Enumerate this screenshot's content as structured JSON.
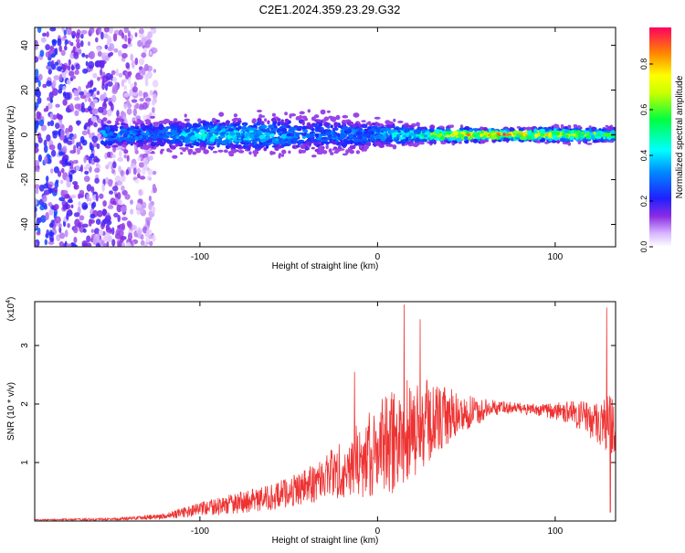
{
  "title": "C2E1.2024.359.23.29.G32",
  "chart_data": [
    {
      "type": "heatmap",
      "title": "C2E1.2024.359.23.29.G32",
      "xlabel": "Height of straight line (km)",
      "ylabel": "Frequency (Hz)",
      "xlim": [
        -193,
        134
      ],
      "ylim": [
        -50,
        48
      ],
      "x_ticks": [
        "-100",
        "0",
        "100"
      ],
      "x_tick_values": [
        -100,
        0,
        100
      ],
      "y_ticks": [
        "-40",
        "-20",
        "0",
        "20",
        "40"
      ],
      "y_tick_values": [
        -40,
        -20,
        0,
        20,
        40
      ],
      "colorbar": {
        "label": "Normalized spectral amplitude",
        "ticks": [
          "0.0",
          "0.2",
          "0.4",
          "0.6",
          "0.8"
        ],
        "tick_values": [
          0.0,
          0.2,
          0.4,
          0.6,
          0.8
        ],
        "range": [
          0,
          0.96
        ],
        "colormap": "rainbow"
      },
      "band": {
        "center_frequency": 0,
        "x_start": -155,
        "profile": [
          {
            "x": -155,
            "halfwidth": 8,
            "amplitude": 0.4
          },
          {
            "x": -120,
            "halfwidth": 9,
            "amplitude": 0.35
          },
          {
            "x": -100,
            "halfwidth": 9,
            "amplitude": 0.5
          },
          {
            "x": -60,
            "halfwidth": 10,
            "amplitude": 0.45
          },
          {
            "x": -40,
            "halfwidth": 11,
            "amplitude": 0.35
          },
          {
            "x": 0,
            "halfwidth": 8,
            "amplitude": 0.4
          },
          {
            "x": 20,
            "halfwidth": 5,
            "amplitude": 0.55
          },
          {
            "x": 40,
            "halfwidth": 4,
            "amplitude": 0.8
          },
          {
            "x": 70,
            "halfwidth": 3,
            "amplitude": 0.96
          },
          {
            "x": 100,
            "halfwidth": 4,
            "amplitude": 0.8
          },
          {
            "x": 134,
            "halfwidth": 4,
            "amplitude": 0.6
          }
        ]
      },
      "scatter_region": {
        "x_range": [
          -193,
          -125
        ],
        "y_range": [
          -50,
          48
        ],
        "amplitude": 0.3
      }
    },
    {
      "type": "line",
      "xlabel": "Height of straight line (km)",
      "ylabel": "SNR (10 * v/v)",
      "y_multiplier": "(x10",
      "y_multiplier_exp": "4",
      "xlim": [
        -193,
        134
      ],
      "ylim": [
        0,
        3.75
      ],
      "x_ticks": [
        "-100",
        "0",
        "100"
      ],
      "x_tick_values": [
        -100,
        0,
        100
      ],
      "y_ticks": [
        "1",
        "2",
        "3"
      ],
      "y_tick_values": [
        1,
        2,
        3
      ],
      "color": "#ee3333",
      "envelope": [
        {
          "x": -193,
          "mean": 0.02,
          "spread": 0.01
        },
        {
          "x": -150,
          "mean": 0.03,
          "spread": 0.02
        },
        {
          "x": -120,
          "mean": 0.08,
          "spread": 0.05
        },
        {
          "x": -100,
          "mean": 0.2,
          "spread": 0.12
        },
        {
          "x": -80,
          "mean": 0.3,
          "spread": 0.18
        },
        {
          "x": -60,
          "mean": 0.4,
          "spread": 0.22
        },
        {
          "x": -40,
          "mean": 0.6,
          "spread": 0.3
        },
        {
          "x": -20,
          "mean": 0.9,
          "spread": 0.5
        },
        {
          "x": 0,
          "mean": 1.2,
          "spread": 0.8
        },
        {
          "x": 15,
          "mean": 1.5,
          "spread": 1.0
        },
        {
          "x": 30,
          "mean": 1.7,
          "spread": 0.7
        },
        {
          "x": 50,
          "mean": 1.85,
          "spread": 0.3
        },
        {
          "x": 70,
          "mean": 1.95,
          "spread": 0.1
        },
        {
          "x": 90,
          "mean": 1.9,
          "spread": 0.1
        },
        {
          "x": 110,
          "mean": 1.85,
          "spread": 0.2
        },
        {
          "x": 125,
          "mean": 1.7,
          "spread": 0.4
        },
        {
          "x": 134,
          "mean": 1.6,
          "spread": 0.6
        }
      ],
      "peaks": [
        {
          "x": 15,
          "y": 3.7
        },
        {
          "x": 24,
          "y": 3.45
        },
        {
          "x": 129,
          "y": 3.65
        },
        {
          "x": -13,
          "y": 2.55
        }
      ],
      "min_spike": {
        "x": 131,
        "y": 0.15
      }
    }
  ]
}
